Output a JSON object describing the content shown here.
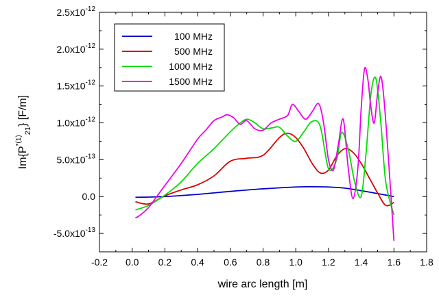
{
  "chart_data": {
    "type": "line",
    "xlabel": "wire arc length  [m]",
    "ylabel": {
      "base": "Im{P",
      "sup": "*(1)",
      "sub": "21",
      "tail": "}  [F/m]"
    },
    "xlim": [
      -0.2,
      1.8
    ],
    "ylim": [
      -7.5e-13,
      2.5e-12
    ],
    "x_ticks": [
      -0.2,
      0.0,
      0.2,
      0.4,
      0.6,
      0.8,
      1.0,
      1.2,
      1.4,
      1.6,
      1.8
    ],
    "x_tick_labels": [
      "-0.2",
      "0.0",
      "0.2",
      "0.4",
      "0.6",
      "0.8",
      "1.0",
      "1.2",
      "1.4",
      "1.6",
      "1.8"
    ],
    "y_ticks": [
      -5e-13,
      0,
      5e-13,
      1e-12,
      1.5e-12,
      2e-12,
      2.5e-12
    ],
    "y_tick_labels": [
      {
        "m": "-5.0x10",
        "e": "-13"
      },
      {
        "m": "0.0",
        "e": ""
      },
      {
        "m": "5.0x10",
        "e": "-13"
      },
      {
        "m": "1.0x10",
        "e": "-12"
      },
      {
        "m": "1.5x10",
        "e": "-12"
      },
      {
        "m": "2.0x10",
        "e": "-12"
      },
      {
        "m": "2.5x10",
        "e": "-12"
      }
    ],
    "grid": false,
    "legend_position": "top-left",
    "series": [
      {
        "name": "100 MHz",
        "color": "#0000cc",
        "x": [
          0.02,
          0.2,
          0.4,
          0.6,
          0.8,
          1.0,
          1.1,
          1.2,
          1.3,
          1.4,
          1.5,
          1.6
        ],
        "y": [
          -1e-14,
          0,
          3e-14,
          7e-14,
          1.05e-13,
          1.3e-13,
          1.33e-13,
          1.3e-13,
          1.15e-13,
          8e-14,
          4e-14,
          0
        ]
      },
      {
        "name": "500 MHz",
        "color": "#dd0000",
        "x": [
          0.02,
          0.1,
          0.2,
          0.3,
          0.4,
          0.5,
          0.6,
          0.7,
          0.8,
          0.9,
          0.95,
          1.0,
          1.05,
          1.1,
          1.15,
          1.2,
          1.25,
          1.3,
          1.35,
          1.4,
          1.45,
          1.5,
          1.55,
          1.6
        ],
        "y": [
          -7e-14,
          -1e-13,
          1e-14,
          9e-14,
          1.6e-13,
          2.8e-13,
          4.8e-13,
          5.2e-13,
          5.6e-13,
          8e-13,
          8.6e-13,
          8e-13,
          6.5e-13,
          4.5e-13,
          3.2e-13,
          3.6e-13,
          5.5e-13,
          6.5e-13,
          6e-13,
          4.5e-13,
          2.5e-13,
          5e-14,
          -1.2e-13,
          -8e-14
        ]
      },
      {
        "name": "1000 MHz",
        "color": "#00dd00",
        "x": [
          0.02,
          0.1,
          0.2,
          0.3,
          0.4,
          0.5,
          0.6,
          0.65,
          0.7,
          0.75,
          0.8,
          0.85,
          0.9,
          0.95,
          1.0,
          1.05,
          1.1,
          1.15,
          1.2,
          1.25,
          1.28,
          1.32,
          1.36,
          1.4,
          1.43,
          1.46,
          1.49,
          1.52,
          1.55,
          1.6
        ],
        "y": [
          -1.8e-13,
          -1.2e-13,
          2e-14,
          2e-13,
          4.5e-13,
          6.5e-13,
          8.8e-13,
          9.8e-13,
          1.05e-12,
          1e-12,
          9.2e-13,
          9.3e-13,
          9.4e-13,
          8.2e-13,
          7.5e-13,
          8.8e-13,
          1.02e-12,
          9.5e-13,
          3.8e-13,
          5e-13,
          8.7e-13,
          6.5e-13,
          2e-13,
          0,
          6e-13,
          1.4e-12,
          1.6e-12,
          1e-12,
          2e-13,
          -2.5e-13
        ]
      },
      {
        "name": "1500 MHz",
        "color": "#ee00ee",
        "x": [
          0.02,
          0.05,
          0.1,
          0.15,
          0.2,
          0.3,
          0.4,
          0.45,
          0.5,
          0.55,
          0.58,
          0.62,
          0.66,
          0.7,
          0.75,
          0.8,
          0.85,
          0.9,
          0.95,
          0.98,
          1.02,
          1.06,
          1.1,
          1.14,
          1.17,
          1.2,
          1.23,
          1.26,
          1.29,
          1.32,
          1.35,
          1.38,
          1.4,
          1.42,
          1.44,
          1.46,
          1.48,
          1.5,
          1.52,
          1.54,
          1.57,
          1.6
        ],
        "y": [
          -2.9e-13,
          -2.5e-13,
          -1.5e-13,
          0,
          1.5e-13,
          4.5e-13,
          7.8e-13,
          9e-13,
          1.03e-12,
          1.08e-12,
          1.11e-12,
          1.07e-12,
          9.8e-13,
          1.03e-12,
          9.2e-13,
          9e-13,
          1e-12,
          1.05e-12,
          1.1e-12,
          1.25e-12,
          1.15e-12,
          1.05e-12,
          1.15e-12,
          1.26e-12,
          1e-12,
          5e-13,
          3.6e-13,
          7e-13,
          1.05e-12,
          4e-13,
          -3e-14,
          4e-13,
          1.2e-12,
          1.73e-12,
          1.6e-12,
          1.2e-12,
          1e-12,
          1.4e-12,
          1.63e-12,
          1.3e-12,
          4e-13,
          -6e-13
        ]
      }
    ]
  }
}
